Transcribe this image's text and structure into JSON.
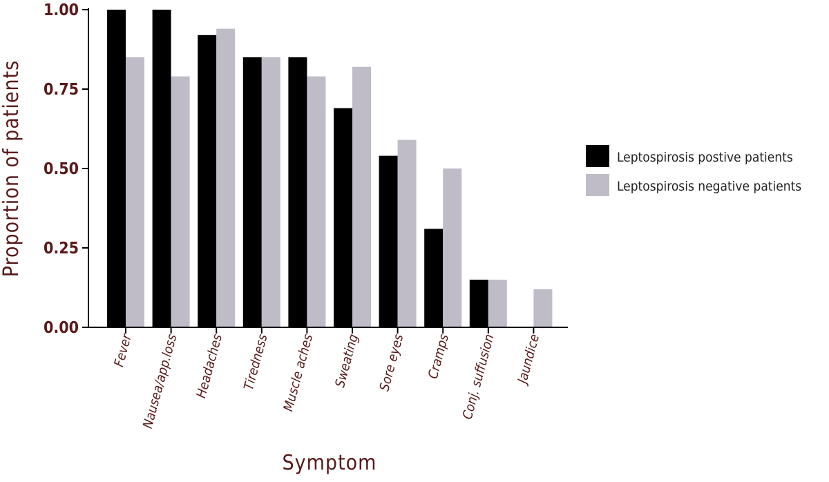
{
  "chart_data": {
    "type": "bar",
    "categories": [
      "Fever",
      "Nausea/app.loss",
      "Headaches",
      "Tiredness",
      "Muscle aches",
      "Sweating",
      "Sore eyes",
      "Cramps",
      "Conj. suffusion",
      "Jaundice"
    ],
    "series": [
      {
        "name": "Leptospirosis postive patients",
        "color": "#000000",
        "values": [
          1.0,
          1.0,
          0.92,
          0.85,
          0.85,
          0.69,
          0.54,
          0.31,
          0.15,
          0.0
        ]
      },
      {
        "name": "Leptospirosis negative patients",
        "color": "#bfbcc8",
        "values": [
          0.85,
          0.79,
          0.94,
          0.85,
          0.79,
          0.82,
          0.59,
          0.5,
          0.15,
          0.12
        ]
      }
    ],
    "title": "",
    "xlabel": "Symptom",
    "ylabel": "Proportion of patients",
    "ylim": [
      0,
      1
    ],
    "yticks": [
      "0.00",
      "0.25",
      "0.50",
      "0.75",
      "1.00"
    ],
    "grid": false,
    "legend_position": "right"
  }
}
